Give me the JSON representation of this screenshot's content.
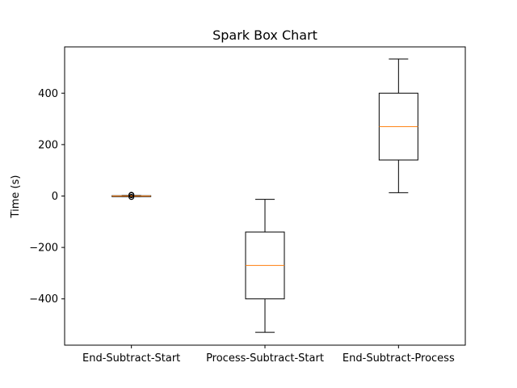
{
  "chart_data": {
    "type": "box",
    "title": "Spark Box Chart",
    "xlabel": "",
    "ylabel": "Time (s)",
    "ylim": [
      -580,
      580
    ],
    "yticks": [
      -400,
      -200,
      0,
      200,
      400
    ],
    "ytick_labels": [
      "−400",
      "−200",
      "0",
      "200",
      "400"
    ],
    "categories": [
      "End-Subtract-Start",
      "Process-Subtract-Start",
      "End-Subtract-Process"
    ],
    "boxes": [
      {
        "whisker_low": -2,
        "q1": -1,
        "median": 0,
        "q3": 1,
        "whisker_high": 2,
        "outliers": [
          -4,
          -3,
          3,
          4,
          5
        ]
      },
      {
        "whisker_low": -530,
        "q1": -400,
        "median": -270,
        "q3": -140,
        "whisker_high": -13,
        "outliers": []
      },
      {
        "whisker_low": 13,
        "q1": 140,
        "median": 270,
        "q3": 400,
        "whisker_high": 533,
        "outliers": []
      }
    ],
    "grid": false,
    "colors": {
      "box": "#000000",
      "median": "#ff7f0e",
      "flier": "#000000"
    }
  }
}
